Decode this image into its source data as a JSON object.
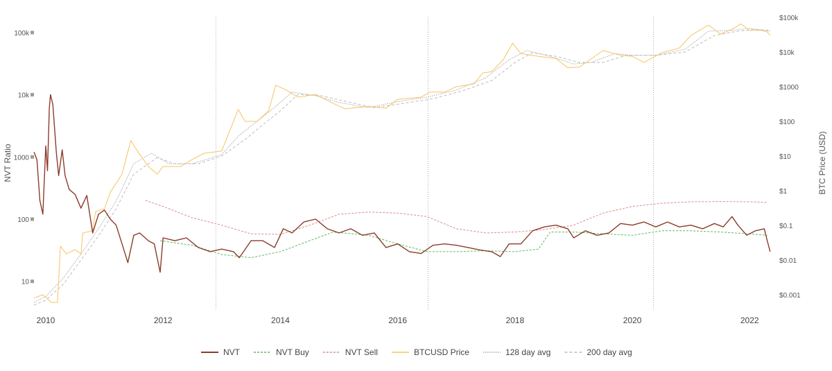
{
  "chart_data": {
    "type": "line",
    "xlabel": "",
    "ylabel_left": "NVT Ratio",
    "ylabel_right": "BTC Price (USD)",
    "x_ticks": [
      "2010",
      "2012",
      "2014",
      "2016",
      "2018",
      "2020",
      "2022"
    ],
    "x_tick_values": [
      2010,
      2012,
      2014,
      2016,
      2018,
      2020,
      2022
    ],
    "xlim": [
      2009.78,
      2022.35
    ],
    "left_ticks": [
      "10",
      "100",
      "1000",
      "10k",
      "100k"
    ],
    "left_tick_values": [
      10,
      100,
      1000,
      10000,
      100000
    ],
    "right_ticks": [
      "$0.001",
      "$0.01",
      "$0.1",
      "$1",
      "$10",
      "$100",
      "$1000",
      "$10k",
      "$100k"
    ],
    "right_tick_values": [
      0.001,
      0.01,
      0.1,
      1,
      10,
      100,
      1000,
      10000,
      100000
    ],
    "y_scale": "log",
    "halving_lines": [
      2012.9,
      2016.52,
      2020.36
    ],
    "legend_position": "bottom",
    "colors": {
      "nvt": "#8b3a2a",
      "buy": "#5cb85c",
      "sell": "#d98b8b",
      "price": "#f7c35f",
      "avg128": "#aaaaaa",
      "avg200": "#bbbbbb",
      "tick_marker": "#a89a88"
    },
    "series": [
      {
        "name": "NVT",
        "axis": "left",
        "style": "solid",
        "color_key": "nvt",
        "points": [
          [
            2009.8,
            1200
          ],
          [
            2009.85,
            900
          ],
          [
            2009.9,
            200
          ],
          [
            2009.95,
            120
          ],
          [
            2010.0,
            1500
          ],
          [
            2010.03,
            600
          ],
          [
            2010.06,
            6000
          ],
          [
            2010.08,
            10000
          ],
          [
            2010.12,
            7000
          ],
          [
            2010.18,
            1200
          ],
          [
            2010.22,
            500
          ],
          [
            2010.28,
            1300
          ],
          [
            2010.33,
            500
          ],
          [
            2010.4,
            300
          ],
          [
            2010.5,
            250
          ],
          [
            2010.6,
            150
          ],
          [
            2010.7,
            240
          ],
          [
            2010.8,
            60
          ],
          [
            2010.9,
            120
          ],
          [
            2011.0,
            140
          ],
          [
            2011.1,
            100
          ],
          [
            2011.2,
            80
          ],
          [
            2011.3,
            40
          ],
          [
            2011.4,
            20
          ],
          [
            2011.5,
            55
          ],
          [
            2011.6,
            60
          ],
          [
            2011.75,
            45
          ],
          [
            2011.85,
            40
          ],
          [
            2011.95,
            14
          ],
          [
            2012.0,
            50
          ],
          [
            2012.2,
            45
          ],
          [
            2012.4,
            50
          ],
          [
            2012.6,
            35
          ],
          [
            2012.8,
            30
          ],
          [
            2013.0,
            33
          ],
          [
            2013.2,
            30
          ],
          [
            2013.3,
            24
          ],
          [
            2013.5,
            45
          ],
          [
            2013.7,
            45
          ],
          [
            2013.9,
            35
          ],
          [
            2014.05,
            70
          ],
          [
            2014.2,
            60
          ],
          [
            2014.4,
            90
          ],
          [
            2014.6,
            100
          ],
          [
            2014.8,
            70
          ],
          [
            2015.0,
            60
          ],
          [
            2015.2,
            70
          ],
          [
            2015.4,
            55
          ],
          [
            2015.6,
            60
          ],
          [
            2015.8,
            35
          ],
          [
            2016.0,
            40
          ],
          [
            2016.2,
            30
          ],
          [
            2016.4,
            28
          ],
          [
            2016.6,
            38
          ],
          [
            2016.8,
            40
          ],
          [
            2017.0,
            38
          ],
          [
            2017.2,
            35
          ],
          [
            2017.4,
            32
          ],
          [
            2017.6,
            30
          ],
          [
            2017.75,
            25
          ],
          [
            2017.9,
            40
          ],
          [
            2018.1,
            40
          ],
          [
            2018.3,
            65
          ],
          [
            2018.5,
            75
          ],
          [
            2018.7,
            80
          ],
          [
            2018.9,
            70
          ],
          [
            2019.0,
            50
          ],
          [
            2019.2,
            65
          ],
          [
            2019.4,
            55
          ],
          [
            2019.6,
            60
          ],
          [
            2019.8,
            85
          ],
          [
            2020.0,
            80
          ],
          [
            2020.2,
            90
          ],
          [
            2020.4,
            75
          ],
          [
            2020.6,
            90
          ],
          [
            2020.8,
            75
          ],
          [
            2021.0,
            80
          ],
          [
            2021.2,
            70
          ],
          [
            2021.4,
            85
          ],
          [
            2021.55,
            75
          ],
          [
            2021.7,
            110
          ],
          [
            2021.8,
            80
          ],
          [
            2021.95,
            55
          ],
          [
            2022.1,
            65
          ],
          [
            2022.25,
            70
          ],
          [
            2022.3,
            45
          ],
          [
            2022.35,
            30
          ]
        ]
      },
      {
        "name": "NVT Buy",
        "axis": "left",
        "style": "dash-green",
        "color_key": "buy",
        "points": [
          [
            2011.95,
            45
          ],
          [
            2012.5,
            38
          ],
          [
            2013.0,
            27
          ],
          [
            2013.5,
            24
          ],
          [
            2014.0,
            30
          ],
          [
            2014.5,
            45
          ],
          [
            2014.9,
            62
          ],
          [
            2015.5,
            55
          ],
          [
            2016.0,
            40
          ],
          [
            2016.5,
            30
          ],
          [
            2017.0,
            30
          ],
          [
            2017.5,
            31
          ],
          [
            2018.0,
            30
          ],
          [
            2018.4,
            33
          ],
          [
            2018.6,
            62
          ],
          [
            2019.0,
            62
          ],
          [
            2019.5,
            58
          ],
          [
            2020.0,
            55
          ],
          [
            2020.5,
            65
          ],
          [
            2021.0,
            65
          ],
          [
            2021.5,
            62
          ],
          [
            2022.0,
            58
          ],
          [
            2022.3,
            55
          ]
        ]
      },
      {
        "name": "NVT Sell",
        "axis": "left",
        "style": "dash-red",
        "color_key": "sell",
        "points": [
          [
            2011.7,
            200
          ],
          [
            2012.0,
            160
          ],
          [
            2012.5,
            105
          ],
          [
            2013.0,
            80
          ],
          [
            2013.5,
            58
          ],
          [
            2014.0,
            57
          ],
          [
            2014.5,
            80
          ],
          [
            2015.0,
            120
          ],
          [
            2015.5,
            130
          ],
          [
            2016.0,
            125
          ],
          [
            2016.5,
            110
          ],
          [
            2017.0,
            70
          ],
          [
            2017.5,
            60
          ],
          [
            2018.0,
            62
          ],
          [
            2018.5,
            68
          ],
          [
            2019.0,
            80
          ],
          [
            2019.5,
            125
          ],
          [
            2020.0,
            160
          ],
          [
            2020.5,
            180
          ],
          [
            2021.0,
            190
          ],
          [
            2021.5,
            192
          ],
          [
            2022.0,
            190
          ],
          [
            2022.3,
            185
          ]
        ]
      },
      {
        "name": "BTCUSD Price",
        "axis": "right",
        "style": "solid",
        "color_key": "price",
        "points": [
          [
            2009.8,
            0.0008
          ],
          [
            2009.95,
            0.001
          ],
          [
            2010.1,
            0.0006
          ],
          [
            2010.2,
            0.0006
          ],
          [
            2010.25,
            0.025
          ],
          [
            2010.35,
            0.015
          ],
          [
            2010.5,
            0.02
          ],
          [
            2010.6,
            0.015
          ],
          [
            2010.63,
            0.06
          ],
          [
            2010.8,
            0.07
          ],
          [
            2010.85,
            0.25
          ],
          [
            2011.0,
            0.3
          ],
          [
            2011.1,
            0.9
          ],
          [
            2011.3,
            3
          ],
          [
            2011.45,
            28
          ],
          [
            2011.55,
            15
          ],
          [
            2011.75,
            5
          ],
          [
            2011.9,
            3
          ],
          [
            2012.0,
            5
          ],
          [
            2012.3,
            5
          ],
          [
            2012.5,
            8
          ],
          [
            2012.7,
            12
          ],
          [
            2013.0,
            14
          ],
          [
            2013.2,
            100
          ],
          [
            2013.28,
            220
          ],
          [
            2013.4,
            100
          ],
          [
            2013.6,
            100
          ],
          [
            2013.8,
            200
          ],
          [
            2013.92,
            1100
          ],
          [
            2014.1,
            800
          ],
          [
            2014.3,
            500
          ],
          [
            2014.6,
            600
          ],
          [
            2014.9,
            330
          ],
          [
            2015.1,
            230
          ],
          [
            2015.5,
            270
          ],
          [
            2015.8,
            240
          ],
          [
            2016.0,
            430
          ],
          [
            2016.4,
            500
          ],
          [
            2016.55,
            700
          ],
          [
            2016.8,
            700
          ],
          [
            2017.0,
            1000
          ],
          [
            2017.3,
            1200
          ],
          [
            2017.45,
            2500
          ],
          [
            2017.6,
            2700
          ],
          [
            2017.8,
            6000
          ],
          [
            2017.96,
            18000
          ],
          [
            2018.1,
            9000
          ],
          [
            2018.4,
            7500
          ],
          [
            2018.7,
            6500
          ],
          [
            2018.9,
            3500
          ],
          [
            2019.1,
            3700
          ],
          [
            2019.5,
            11000
          ],
          [
            2019.8,
            8000
          ],
          [
            2020.0,
            7500
          ],
          [
            2020.2,
            5000
          ],
          [
            2020.5,
            9500
          ],
          [
            2020.8,
            13000
          ],
          [
            2021.0,
            30000
          ],
          [
            2021.3,
            60000
          ],
          [
            2021.5,
            33000
          ],
          [
            2021.7,
            45000
          ],
          [
            2021.85,
            65000
          ],
          [
            2022.0,
            42000
          ],
          [
            2022.2,
            42000
          ],
          [
            2022.3,
            38000
          ],
          [
            2022.35,
            30000
          ]
        ]
      },
      {
        "name": "128 day avg",
        "axis": "right",
        "style": "dot",
        "color_key": "avg128",
        "points": [
          [
            2009.8,
            0.0006
          ],
          [
            2010.0,
            0.0009
          ],
          [
            2010.3,
            0.003
          ],
          [
            2010.6,
            0.015
          ],
          [
            2010.9,
            0.08
          ],
          [
            2011.2,
            0.5
          ],
          [
            2011.5,
            6
          ],
          [
            2011.8,
            12
          ],
          [
            2012.1,
            6
          ],
          [
            2012.5,
            6
          ],
          [
            2013.0,
            11
          ],
          [
            2013.3,
            40
          ],
          [
            2013.6,
            100
          ],
          [
            2013.9,
            250
          ],
          [
            2014.2,
            700
          ],
          [
            2014.6,
            550
          ],
          [
            2015.0,
            350
          ],
          [
            2015.5,
            250
          ],
          [
            2016.0,
            370
          ],
          [
            2016.5,
            500
          ],
          [
            2017.0,
            800
          ],
          [
            2017.5,
            1800
          ],
          [
            2017.9,
            6000
          ],
          [
            2018.2,
            11000
          ],
          [
            2018.6,
            7500
          ],
          [
            2019.0,
            4500
          ],
          [
            2019.3,
            5000
          ],
          [
            2019.7,
            9000
          ],
          [
            2020.0,
            8000
          ],
          [
            2020.4,
            8000
          ],
          [
            2020.9,
            12000
          ],
          [
            2021.3,
            40000
          ],
          [
            2021.7,
            42000
          ],
          [
            2022.0,
            48000
          ],
          [
            2022.35,
            40000
          ]
        ]
      },
      {
        "name": "200 day avg",
        "axis": "right",
        "style": "dash-grey",
        "color_key": "avg200",
        "points": [
          [
            2009.8,
            0.0005
          ],
          [
            2010.0,
            0.0007
          ],
          [
            2010.3,
            0.002
          ],
          [
            2010.6,
            0.01
          ],
          [
            2010.9,
            0.05
          ],
          [
            2011.2,
            0.3
          ],
          [
            2011.5,
            3
          ],
          [
            2011.9,
            9
          ],
          [
            2012.2,
            6
          ],
          [
            2012.6,
            6
          ],
          [
            2013.0,
            10
          ],
          [
            2013.4,
            30
          ],
          [
            2013.7,
            80
          ],
          [
            2014.0,
            200
          ],
          [
            2014.3,
            600
          ],
          [
            2014.7,
            550
          ],
          [
            2015.1,
            380
          ],
          [
            2015.6,
            250
          ],
          [
            2016.1,
            330
          ],
          [
            2016.6,
            450
          ],
          [
            2017.1,
            750
          ],
          [
            2017.6,
            1500
          ],
          [
            2018.0,
            5000
          ],
          [
            2018.3,
            9500
          ],
          [
            2018.7,
            7500
          ],
          [
            2019.1,
            5000
          ],
          [
            2019.5,
            5000
          ],
          [
            2019.9,
            8000
          ],
          [
            2020.4,
            8000
          ],
          [
            2020.9,
            10000
          ],
          [
            2021.4,
            30000
          ],
          [
            2021.8,
            40000
          ],
          [
            2022.1,
            45000
          ],
          [
            2022.35,
            42000
          ]
        ]
      }
    ]
  }
}
